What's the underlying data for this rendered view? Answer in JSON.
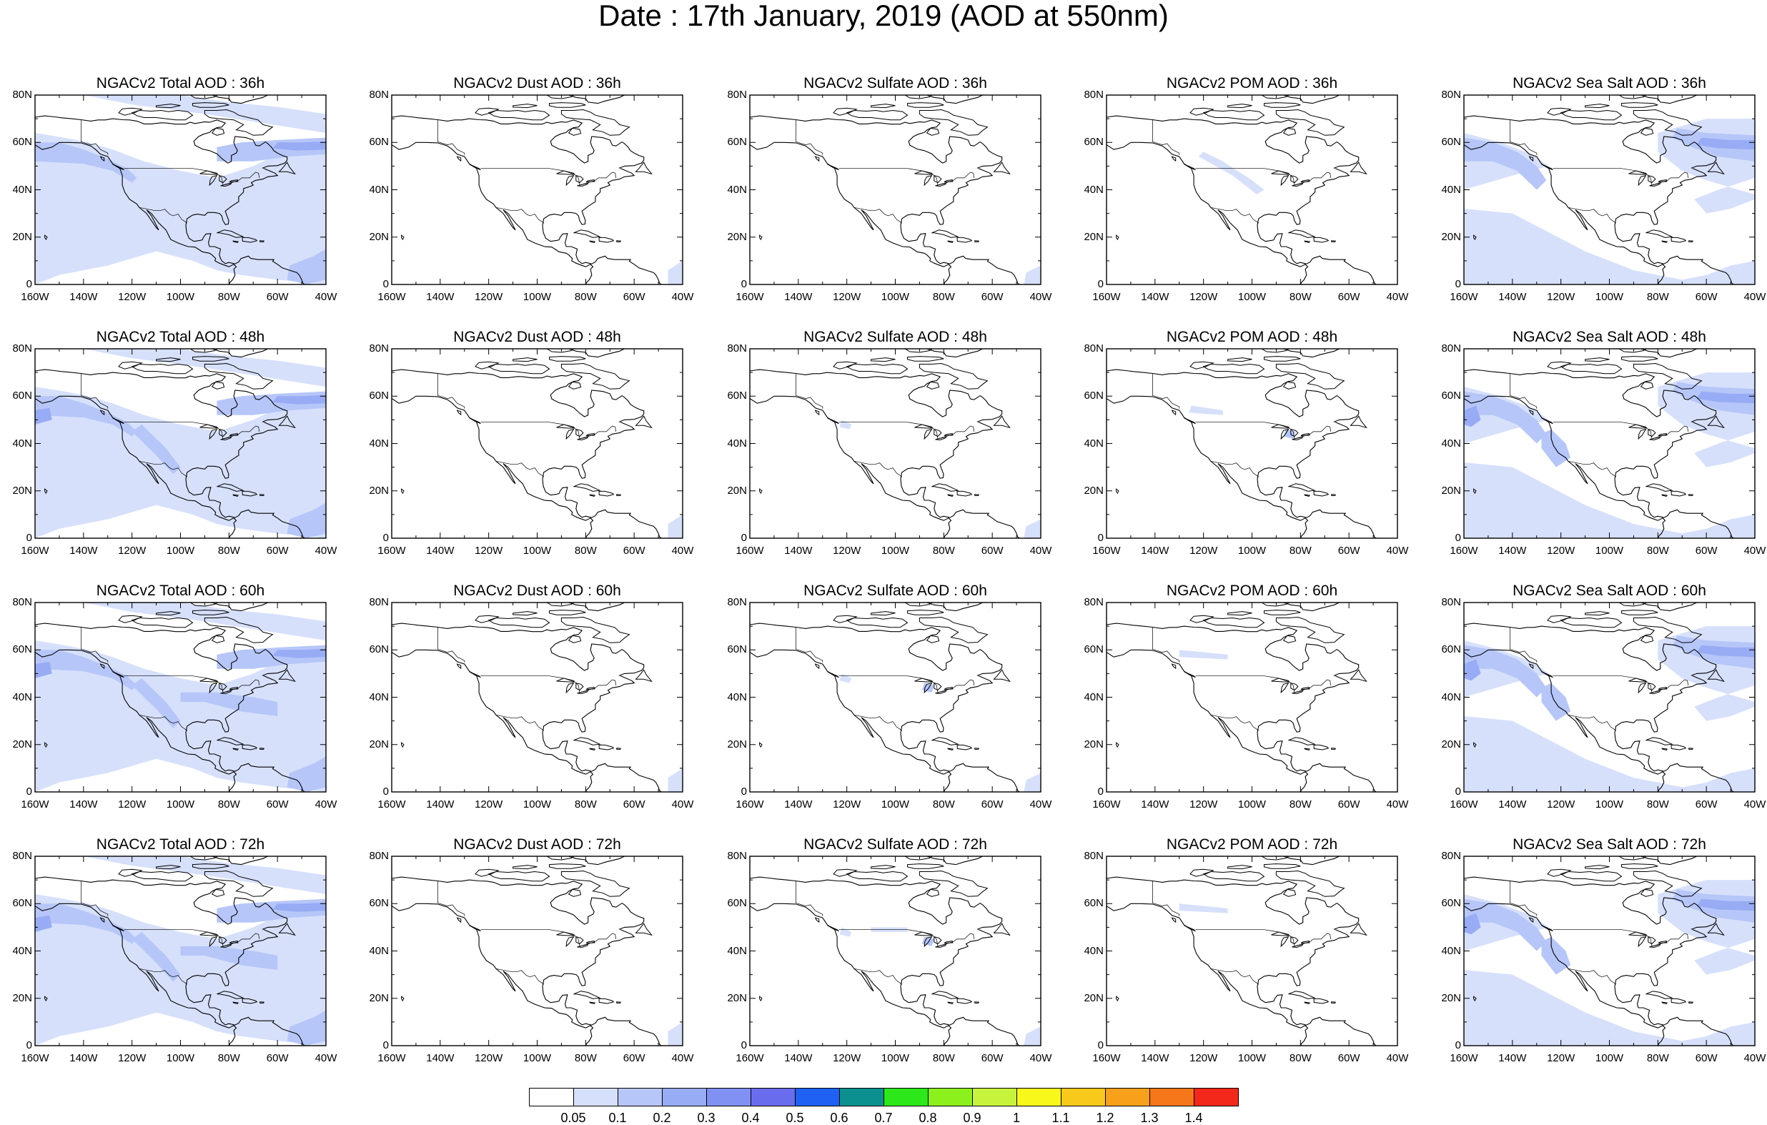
{
  "title": "Date : 17th January, 2019 (AOD at 550nm)",
  "panel_titles": [
    [
      "NGACv2 Total AOD : 36h",
      "NGACv2 Dust AOD : 36h",
      "NGACv2 Sulfate AOD : 36h",
      "NGACv2 POM AOD : 36h",
      "NGACv2 Sea Salt AOD : 36h"
    ],
    [
      "NGACv2 Total AOD : 48h",
      "NGACv2 Dust AOD : 48h",
      "NGACv2 Sulfate AOD : 48h",
      "NGACv2 POM AOD : 48h",
      "NGACv2 Sea Salt AOD : 48h"
    ],
    [
      "NGACv2 Total AOD : 60h",
      "NGACv2 Dust AOD : 60h",
      "NGACv2 Sulfate AOD : 60h",
      "NGACv2 POM AOD : 60h",
      "NGACv2 Sea Salt AOD : 60h"
    ],
    [
      "NGACv2 Total AOD : 72h",
      "NGACv2 Dust AOD : 72h",
      "NGACv2 Sulfate AOD : 72h",
      "NGACv2 POM AOD : 72h",
      "NGACv2 Sea Salt  AOD : 72h"
    ]
  ],
  "lat_ticks": [
    "80N",
    "60N",
    "40N",
    "20N",
    "0"
  ],
  "lon_ticks": [
    "160W",
    "140W",
    "120W",
    "100W",
    "80W",
    "60W",
    "40W"
  ],
  "map_extent": {
    "lon": [
      -160,
      -40
    ],
    "lat": [
      0,
      80
    ]
  },
  "colorbar": {
    "labels": [
      "0.05",
      "0.1",
      "0.2",
      "0.3",
      "0.4",
      "0.5",
      "0.6",
      "0.7",
      "0.8",
      "0.9",
      "1",
      "1.1",
      "1.2",
      "1.3",
      "1.4"
    ],
    "colors": [
      "#ffffff",
      "#d6e0fb",
      "#b6c6f8",
      "#98acf5",
      "#8090f3",
      "#6a6cee",
      "#1f62f3",
      "#0b908f",
      "#2ce81a",
      "#8cf01c",
      "#c8f33c",
      "#f8f81a",
      "#f8c81a",
      "#f8a01a",
      "#f6761a",
      "#f4281a"
    ]
  },
  "species": [
    "total",
    "dust",
    "sulfate",
    "pom",
    "seasalt"
  ],
  "forecast_hours": [
    "36h",
    "48h",
    "60h",
    "72h"
  ]
}
